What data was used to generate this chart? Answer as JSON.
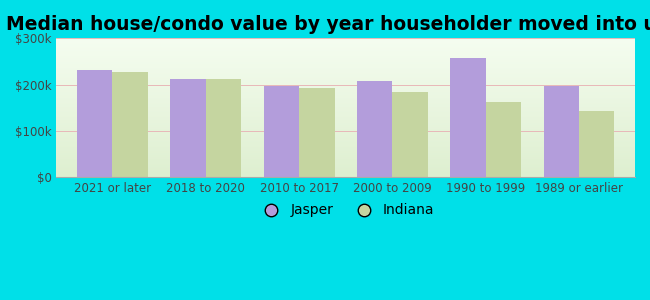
{
  "title": "Median house/condo value by year householder moved into unit",
  "categories": [
    "2021 or later",
    "2018 to 2020",
    "2010 to 2017",
    "2000 to 2009",
    "1990 to 1999",
    "1989 or earlier"
  ],
  "jasper_values": [
    232000,
    213000,
    197000,
    207000,
    258000,
    197000
  ],
  "indiana_values": [
    228000,
    212000,
    192000,
    183000,
    163000,
    143000
  ],
  "jasper_color": "#b39ddb",
  "indiana_color": "#c5d5a0",
  "background_outer": "#00e0e8",
  "background_inner_top": "#f5fdf0",
  "background_inner_bottom": "#deefd0",
  "ylim": [
    0,
    300000
  ],
  "yticks": [
    0,
    100000,
    200000,
    300000
  ],
  "ytick_labels": [
    "$0",
    "$100k",
    "$200k",
    "$300k"
  ],
  "legend_labels": [
    "Jasper",
    "Indiana"
  ],
  "bar_width": 0.38,
  "title_fontsize": 13.5,
  "tick_fontsize": 8.5,
  "legend_fontsize": 10
}
